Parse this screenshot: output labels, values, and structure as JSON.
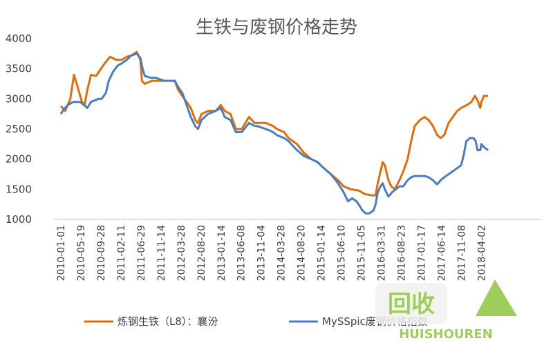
{
  "chart_data": {
    "type": "line",
    "title": "生铁与废钢价格走势",
    "xlabel": "",
    "ylabel": "",
    "ylim": [
      1000,
      4000
    ],
    "yticks": [
      "1000",
      "1500",
      "2000",
      "2500",
      "3000",
      "3500",
      "4000"
    ],
    "x_tick_labels": [
      "2010-01-01",
      "2010-05-19",
      "2010-09-28",
      "2011-02-11",
      "2011-06-29",
      "2011-11-14",
      "2012-03-28",
      "2012-08-20",
      "2013-01-14",
      "2013-06-08",
      "2013-11-04",
      "2014-03-28",
      "2014-08-20",
      "2015-01-14",
      "2015-06-10",
      "2015-11-05",
      "2016-03-31",
      "2016-08-23",
      "2017-01-17",
      "2017-06-14",
      "2017-11-08",
      "2018-04-02"
    ],
    "grid": false,
    "legend_position": "bottom",
    "series": [
      {
        "name": "炼钢生铁（L8）：襄汾",
        "color": "#e36c0a",
        "points": [
          [
            "2010-01-01",
            2880
          ],
          [
            "2010-02-01",
            2800
          ],
          [
            "2010-03-10",
            3000
          ],
          [
            "2010-04-05",
            3400
          ],
          [
            "2010-04-25",
            3250
          ],
          [
            "2010-06-01",
            2950
          ],
          [
            "2010-06-20",
            2900
          ],
          [
            "2010-07-10",
            3150
          ],
          [
            "2010-08-05",
            3400
          ],
          [
            "2010-09-10",
            3380
          ],
          [
            "2010-10-15",
            3500
          ],
          [
            "2010-11-15",
            3600
          ],
          [
            "2010-12-20",
            3700
          ],
          [
            "2011-02-01",
            3650
          ],
          [
            "2011-03-15",
            3650
          ],
          [
            "2011-04-20",
            3700
          ],
          [
            "2011-05-20",
            3720
          ],
          [
            "2011-06-29",
            3780
          ],
          [
            "2011-07-25",
            3650
          ],
          [
            "2011-08-05",
            3300
          ],
          [
            "2011-08-25",
            3250
          ],
          [
            "2011-10-15",
            3300
          ],
          [
            "2011-12-20",
            3300
          ],
          [
            "2012-02-15",
            3300
          ],
          [
            "2012-03-28",
            3300
          ],
          [
            "2012-04-20",
            3150
          ],
          [
            "2012-05-20",
            3050
          ],
          [
            "2012-06-20",
            2950
          ],
          [
            "2012-07-20",
            2850
          ],
          [
            "2012-08-20",
            2650
          ],
          [
            "2012-09-10",
            2600
          ],
          [
            "2012-10-05",
            2750
          ],
          [
            "2012-11-20",
            2800
          ],
          [
            "2013-01-14",
            2800
          ],
          [
            "2013-02-20",
            2900
          ],
          [
            "2013-03-20",
            2800
          ],
          [
            "2013-05-01",
            2750
          ],
          [
            "2013-06-08",
            2500
          ],
          [
            "2013-07-20",
            2500
          ],
          [
            "2013-09-10",
            2700
          ],
          [
            "2013-10-20",
            2600
          ],
          [
            "2013-11-04",
            2600
          ],
          [
            "2014-01-10",
            2600
          ],
          [
            "2014-03-01",
            2550
          ],
          [
            "2014-03-28",
            2500
          ],
          [
            "2014-05-20",
            2450
          ],
          [
            "2014-06-20",
            2350
          ],
          [
            "2014-08-20",
            2250
          ],
          [
            "2014-10-10",
            2100
          ],
          [
            "2014-12-01",
            2000
          ],
          [
            "2015-01-14",
            1950
          ],
          [
            "2015-03-01",
            1850
          ],
          [
            "2015-04-20",
            1750
          ],
          [
            "2015-06-10",
            1650
          ],
          [
            "2015-07-20",
            1550
          ],
          [
            "2015-09-10",
            1500
          ],
          [
            "2015-11-05",
            1480
          ],
          [
            "2015-12-20",
            1420
          ],
          [
            "2016-02-10",
            1400
          ],
          [
            "2016-03-05",
            1400
          ],
          [
            "2016-03-20",
            1600
          ],
          [
            "2016-04-10",
            1800
          ],
          [
            "2016-04-25",
            1950
          ],
          [
            "2016-05-10",
            1900
          ],
          [
            "2016-06-05",
            1650
          ],
          [
            "2016-06-25",
            1550
          ],
          [
            "2016-07-20",
            1500
          ],
          [
            "2016-08-23",
            1650
          ],
          [
            "2016-09-20",
            1800
          ],
          [
            "2016-10-20",
            2000
          ],
          [
            "2016-11-15",
            2300
          ],
          [
            "2016-12-10",
            2550
          ],
          [
            "2017-01-17",
            2650
          ],
          [
            "2017-02-20",
            2700
          ],
          [
            "2017-03-20",
            2650
          ],
          [
            "2017-04-20",
            2550
          ],
          [
            "2017-05-20",
            2400
          ],
          [
            "2017-06-14",
            2350
          ],
          [
            "2017-07-10",
            2400
          ],
          [
            "2017-08-10",
            2600
          ],
          [
            "2017-09-10",
            2700
          ],
          [
            "2017-10-10",
            2800
          ],
          [
            "2017-11-08",
            2850
          ],
          [
            "2017-12-20",
            2900
          ],
          [
            "2018-01-20",
            2950
          ],
          [
            "2018-02-15",
            3050
          ],
          [
            "2018-03-05",
            2980
          ],
          [
            "2018-03-25",
            2850
          ],
          [
            "2018-04-02",
            2950
          ],
          [
            "2018-04-20",
            3050
          ],
          [
            "2018-05-20",
            3050
          ]
        ]
      },
      {
        "name": "MySSpic废钢价格指数",
        "color": "#4a7dbf",
        "points": [
          [
            "2010-01-01",
            2750
          ],
          [
            "2010-01-20",
            2820
          ],
          [
            "2010-02-20",
            2900
          ],
          [
            "2010-04-01",
            2950
          ],
          [
            "2010-05-19",
            2950
          ],
          [
            "2010-06-15",
            2900
          ],
          [
            "2010-07-10",
            2850
          ],
          [
            "2010-08-05",
            2950
          ],
          [
            "2010-09-28",
            3000
          ],
          [
            "2010-10-20",
            3000
          ],
          [
            "2010-11-20",
            3100
          ],
          [
            "2010-12-10",
            3300
          ],
          [
            "2011-01-10",
            3450
          ],
          [
            "2011-02-11",
            3550
          ],
          [
            "2011-03-20",
            3600
          ],
          [
            "2011-04-20",
            3650
          ],
          [
            "2011-05-20",
            3720
          ],
          [
            "2011-06-29",
            3750
          ],
          [
            "2011-07-25",
            3680
          ],
          [
            "2011-08-10",
            3500
          ],
          [
            "2011-08-25",
            3380
          ],
          [
            "2011-10-10",
            3350
          ],
          [
            "2011-11-14",
            3350
          ],
          [
            "2012-01-10",
            3300
          ],
          [
            "2012-02-20",
            3300
          ],
          [
            "2012-03-28",
            3300
          ],
          [
            "2012-04-20",
            3200
          ],
          [
            "2012-05-20",
            3100
          ],
          [
            "2012-06-20",
            2900
          ],
          [
            "2012-07-20",
            2700
          ],
          [
            "2012-08-20",
            2550
          ],
          [
            "2012-09-10",
            2500
          ],
          [
            "2012-10-05",
            2650
          ],
          [
            "2012-11-20",
            2750
          ],
          [
            "2013-01-14",
            2800
          ],
          [
            "2013-02-20",
            2850
          ],
          [
            "2013-03-20",
            2700
          ],
          [
            "2013-05-01",
            2650
          ],
          [
            "2013-06-08",
            2450
          ],
          [
            "2013-07-20",
            2450
          ],
          [
            "2013-09-10",
            2600
          ],
          [
            "2013-10-20",
            2550
          ],
          [
            "2013-11-04",
            2550
          ],
          [
            "2014-01-10",
            2500
          ],
          [
            "2014-03-01",
            2450
          ],
          [
            "2014-03-28",
            2400
          ],
          [
            "2014-05-20",
            2350
          ],
          [
            "2014-06-20",
            2300
          ],
          [
            "2014-08-20",
            2150
          ],
          [
            "2014-10-10",
            2050
          ],
          [
            "2014-12-01",
            2000
          ],
          [
            "2015-01-14",
            1950
          ],
          [
            "2015-03-01",
            1850
          ],
          [
            "2015-04-20",
            1750
          ],
          [
            "2015-06-10",
            1600
          ],
          [
            "2015-07-20",
            1450
          ],
          [
            "2015-08-20",
            1300
          ],
          [
            "2015-09-20",
            1350
          ],
          [
            "2015-10-20",
            1300
          ],
          [
            "2015-11-05",
            1250
          ],
          [
            "2015-12-01",
            1150
          ],
          [
            "2015-12-25",
            1100
          ],
          [
            "2016-01-20",
            1100
          ],
          [
            "2016-02-20",
            1150
          ],
          [
            "2016-03-05",
            1250
          ],
          [
            "2016-03-20",
            1450
          ],
          [
            "2016-04-10",
            1550
          ],
          [
            "2016-04-25",
            1600
          ],
          [
            "2016-05-10",
            1500
          ],
          [
            "2016-06-05",
            1380
          ],
          [
            "2016-07-01",
            1450
          ],
          [
            "2016-08-23",
            1550
          ],
          [
            "2016-09-20",
            1550
          ],
          [
            "2016-10-20",
            1650
          ],
          [
            "2016-11-15",
            1700
          ],
          [
            "2016-12-10",
            1720
          ],
          [
            "2017-01-17",
            1720
          ],
          [
            "2017-02-20",
            1720
          ],
          [
            "2017-03-20",
            1700
          ],
          [
            "2017-04-20",
            1650
          ],
          [
            "2017-05-20",
            1580
          ],
          [
            "2017-06-14",
            1650
          ],
          [
            "2017-07-10",
            1700
          ],
          [
            "2017-08-10",
            1750
          ],
          [
            "2017-09-10",
            1800
          ],
          [
            "2017-10-10",
            1850
          ],
          [
            "2017-11-08",
            1900
          ],
          [
            "2017-11-25",
            2050
          ],
          [
            "2017-12-15",
            2300
          ],
          [
            "2018-01-10",
            2350
          ],
          [
            "2018-02-05",
            2350
          ],
          [
            "2018-02-20",
            2300
          ],
          [
            "2018-03-05",
            2150
          ],
          [
            "2018-03-25",
            2150
          ],
          [
            "2018-04-02",
            2250
          ],
          [
            "2018-04-20",
            2200
          ],
          [
            "2018-05-20",
            2150
          ]
        ]
      }
    ]
  },
  "watermark": {
    "logo_text": "回收",
    "brand_text": "HUISHOUREN"
  }
}
